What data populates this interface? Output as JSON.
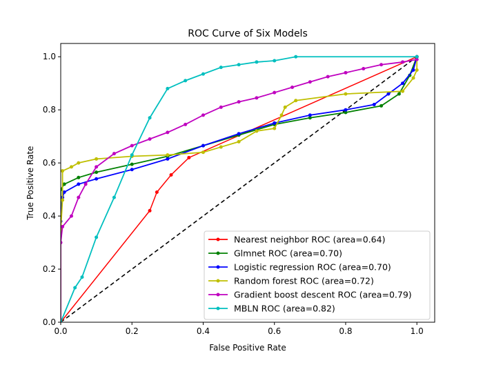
{
  "chart_data": {
    "type": "line",
    "title": "ROC Curve of Six Models",
    "xlabel": "False Positive Rate",
    "ylabel": "True Positive Rate",
    "xlim": [
      0,
      1.05
    ],
    "ylim": [
      0,
      1.05
    ],
    "xticks": [
      "0.0",
      "0.2",
      "0.4",
      "0.6",
      "0.8",
      "1.0"
    ],
    "yticks": [
      "0.0",
      "0.2",
      "0.4",
      "0.6",
      "0.8",
      "1.0"
    ],
    "grid": false,
    "legend_position": "bottom-right",
    "reference_line": {
      "style": "dashed",
      "color": "#000000",
      "x": [
        0,
        1
      ],
      "y": [
        0,
        1
      ]
    },
    "series": [
      {
        "name": "Nearest neighbor ROC (area=0.64)",
        "color": "#ff0000",
        "x": [
          0,
          0.25,
          0.27,
          0.31,
          0.36,
          1
        ],
        "y": [
          0,
          0.42,
          0.49,
          0.555,
          0.62,
          1
        ]
      },
      {
        "name": "Glmnet ROC (area=0.70)",
        "color": "#008000",
        "x": [
          0,
          0,
          0.01,
          0.05,
          0.1,
          0.2,
          0.3,
          0.4,
          0.5,
          0.6,
          0.7,
          0.8,
          0.9,
          0.95,
          0.98,
          1
        ],
        "y": [
          0,
          0.5,
          0.52,
          0.545,
          0.565,
          0.595,
          0.625,
          0.665,
          0.705,
          0.745,
          0.77,
          0.79,
          0.815,
          0.86,
          0.93,
          1
        ]
      },
      {
        "name": "Logistic regression ROC (area=0.70)",
        "color": "#0000ff",
        "x": [
          0,
          0,
          0.005,
          0.01,
          0.05,
          0.1,
          0.2,
          0.3,
          0.4,
          0.5,
          0.6,
          0.7,
          0.8,
          0.88,
          0.92,
          0.96,
          0.99,
          1
        ],
        "y": [
          0,
          0.38,
          0.47,
          0.49,
          0.52,
          0.54,
          0.575,
          0.615,
          0.665,
          0.71,
          0.75,
          0.78,
          0.8,
          0.82,
          0.86,
          0.9,
          0.95,
          1
        ]
      },
      {
        "name": "Random forest ROC (area=0.72)",
        "color": "#bfbf00",
        "x": [
          0,
          0,
          0.005,
          0.005,
          0.03,
          0.05,
          0.1,
          0.2,
          0.3,
          0.4,
          0.45,
          0.5,
          0.55,
          0.6,
          0.62,
          0.63,
          0.66,
          0.8,
          0.96,
          0.99,
          1,
          1
        ],
        "y": [
          0,
          0.35,
          0.46,
          0.57,
          0.585,
          0.6,
          0.615,
          0.625,
          0.63,
          0.64,
          0.66,
          0.68,
          0.72,
          0.73,
          0.78,
          0.81,
          0.835,
          0.86,
          0.87,
          0.92,
          0.95,
          1
        ]
      },
      {
        "name": "Gradient boost descent ROC (area=0.79)",
        "color": "#bf00bf",
        "x": [
          0,
          0,
          0.005,
          0.03,
          0.05,
          0.07,
          0.1,
          0.15,
          0.2,
          0.25,
          0.3,
          0.35,
          0.4,
          0.45,
          0.5,
          0.55,
          0.6,
          0.65,
          0.7,
          0.75,
          0.8,
          0.85,
          0.9,
          0.96,
          1,
          1
        ],
        "y": [
          0,
          0.3,
          0.36,
          0.4,
          0.47,
          0.52,
          0.585,
          0.635,
          0.665,
          0.69,
          0.715,
          0.745,
          0.78,
          0.81,
          0.83,
          0.845,
          0.865,
          0.885,
          0.905,
          0.925,
          0.94,
          0.955,
          0.97,
          0.98,
          0.99,
          1
        ]
      },
      {
        "name": "MBLN ROC (area=0.82)",
        "color": "#00bfbf",
        "x": [
          0,
          0.04,
          0.06,
          0.1,
          0.15,
          0.2,
          0.25,
          0.3,
          0.35,
          0.4,
          0.45,
          0.5,
          0.55,
          0.6,
          0.66,
          1
        ],
        "y": [
          0,
          0.13,
          0.17,
          0.32,
          0.47,
          0.63,
          0.77,
          0.88,
          0.91,
          0.935,
          0.96,
          0.97,
          0.98,
          0.985,
          1.0,
          1
        ]
      }
    ]
  }
}
